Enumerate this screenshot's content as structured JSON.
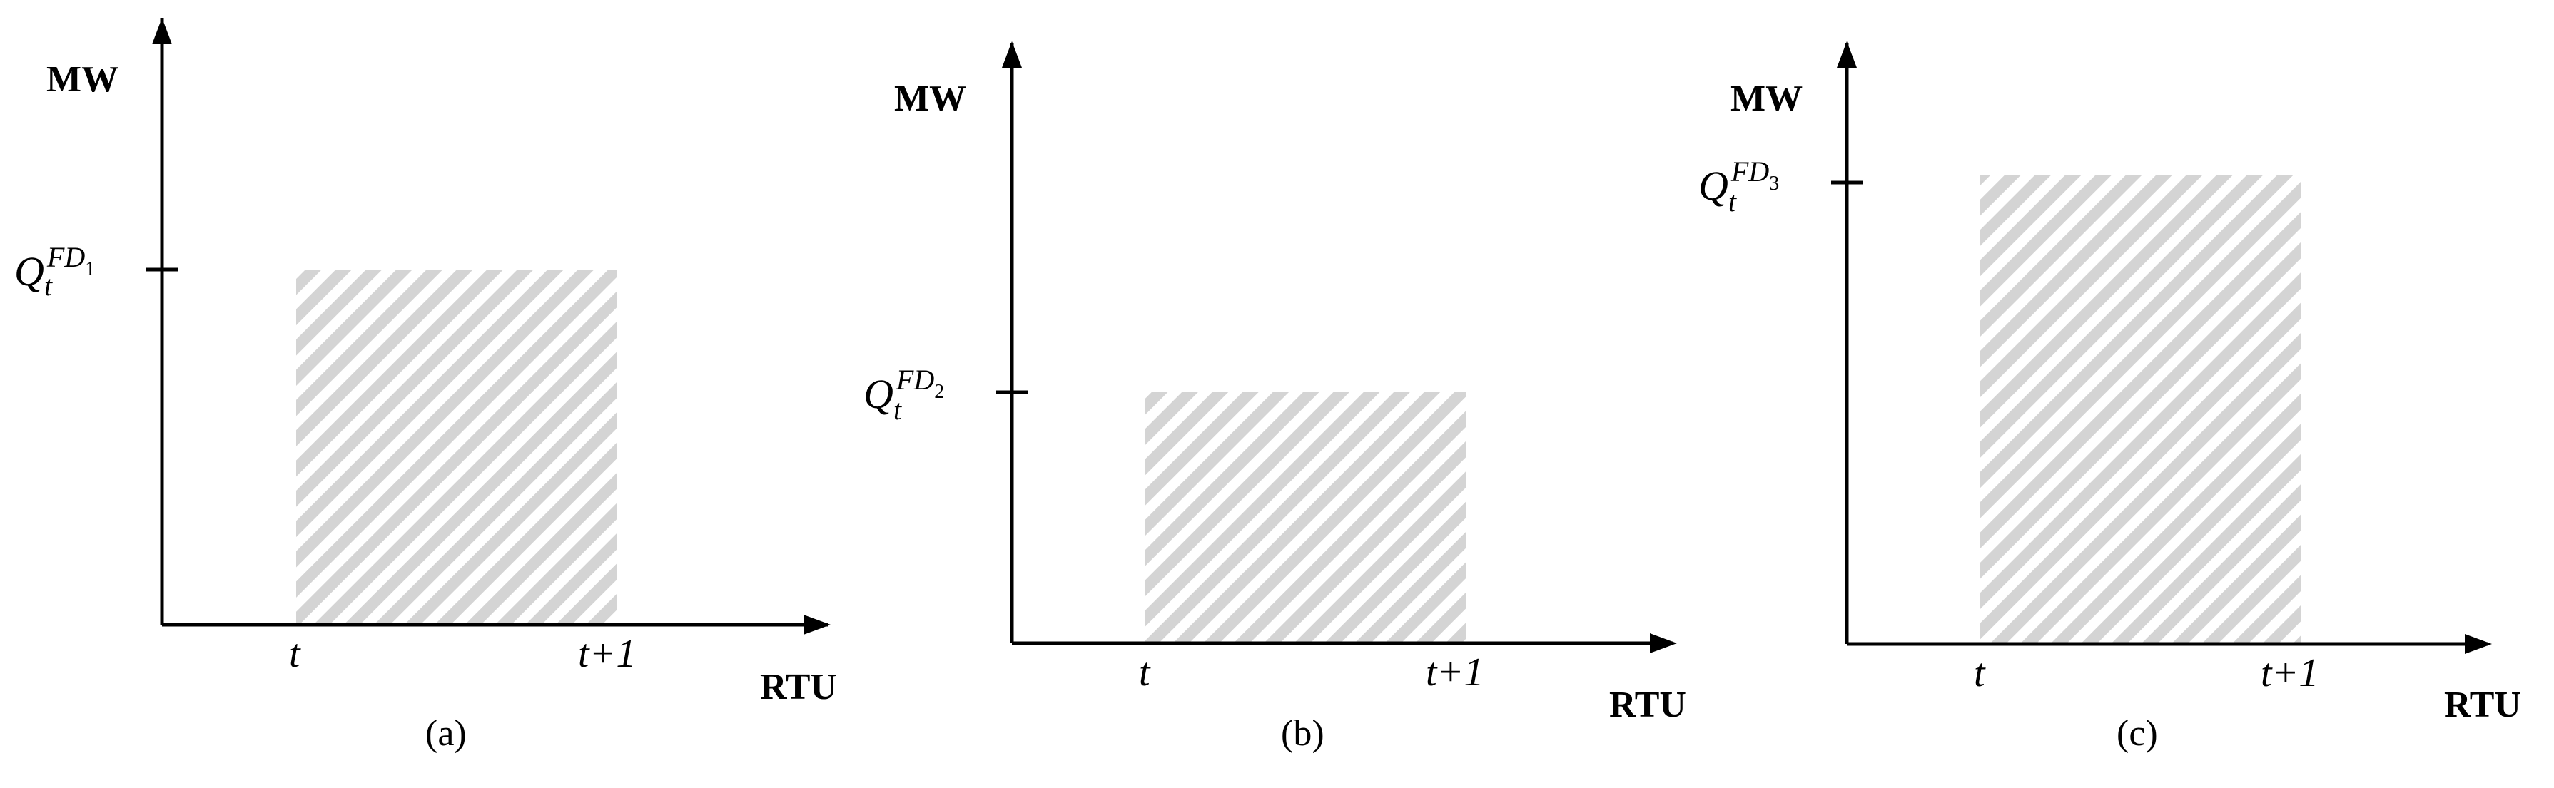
{
  "panels": [
    {
      "id": "a",
      "y_axis_label": "MW",
      "x_axis_label": "RTU",
      "level_symbol": "Q",
      "level_sub": "t",
      "level_sup": "FD",
      "level_sup_index": "1",
      "x_tick_start": "t",
      "x_tick_end": "t+1",
      "caption": "(a)"
    },
    {
      "id": "b",
      "y_axis_label": "MW",
      "x_axis_label": "RTU",
      "level_symbol": "Q",
      "level_sub": "t",
      "level_sup": "FD",
      "level_sup_index": "2",
      "x_tick_start": "t",
      "x_tick_end": "t+1",
      "caption": "(b)"
    },
    {
      "id": "c",
      "y_axis_label": "MW",
      "x_axis_label": "RTU",
      "level_symbol": "Q",
      "level_sub": "t",
      "level_sup": "FD",
      "level_sup_index": "3",
      "x_tick_start": "t",
      "x_tick_end": "t+1",
      "caption": "(c)"
    }
  ],
  "colors": {
    "hatch": "#d4d4d4",
    "axis": "#000000"
  }
}
